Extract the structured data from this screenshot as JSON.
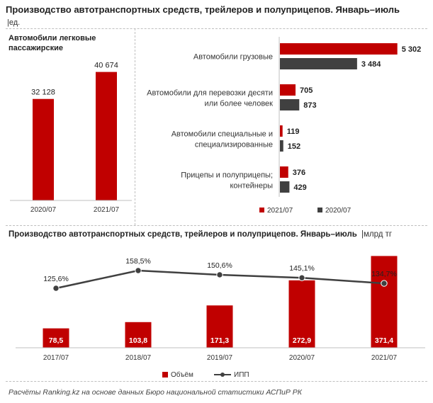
{
  "header": {
    "title": "Производство автотранспортных средств, трейлеров и полуприцепов. Январь–июль",
    "unit": "|ед."
  },
  "colors": {
    "red": "#c00000",
    "dark": "#404040",
    "line": "#404040"
  },
  "chart_data": [
    {
      "type": "bar",
      "title": "Автомобили  легковые пассажирские",
      "categories": [
        "2020/07",
        "2021/07"
      ],
      "values": [
        32128,
        40674
      ],
      "value_labels": [
        "32 128",
        "40 674"
      ]
    },
    {
      "type": "bar",
      "orientation": "horizontal",
      "categories": [
        "Автомобили грузовые",
        "Автомобили для перевозки десяти или более человек",
        "Автомобили специальные и специализированные",
        "Прицепы и полуприцепы; контейнеры"
      ],
      "category_lines": [
        [
          "Автомобили грузовые"
        ],
        [
          "Автомобили для перевозки десяти",
          "или более человек"
        ],
        [
          "Автомобили специальные и",
          "специализированные"
        ],
        [
          "Прицепы и полуприцепы;",
          "контейнеры"
        ]
      ],
      "series": [
        {
          "name": "2021/07",
          "values": [
            5302,
            705,
            119,
            376
          ],
          "labels": [
            "5 302",
            "705",
            "119",
            "376"
          ]
        },
        {
          "name": "2020/07",
          "values": [
            3484,
            873,
            152,
            429
          ],
          "labels": [
            "3 484",
            "873",
            "152",
            "429"
          ]
        }
      ],
      "legend": "bottom"
    },
    {
      "type": "bar",
      "title": "Производство  автотранспортных  средств, трейлеров и полуприцепов. Январь–июль",
      "unit": "|млрд тг",
      "categories": [
        "2017/07",
        "2018/07",
        "2019/07",
        "2020/07",
        "2021/07"
      ],
      "series": [
        {
          "name": "Объём",
          "type": "bar",
          "values": [
            78.5,
            103.8,
            171.3,
            272.9,
            371.4
          ],
          "labels": [
            "78,5",
            "103,8",
            "171,3",
            "272,9",
            "371,4"
          ]
        },
        {
          "name": "ИПП",
          "type": "line",
          "values": [
            125.6,
            158.5,
            150.6,
            145.1,
            134.7
          ],
          "labels": [
            "125,6%",
            "158,5%",
            "150,6%",
            "145,1%",
            "134,7%"
          ]
        }
      ],
      "legend": "bottom"
    }
  ],
  "footer": "Расчёты Ranking.kz на основе данных Бюро национальной статистики АСПиР РК"
}
